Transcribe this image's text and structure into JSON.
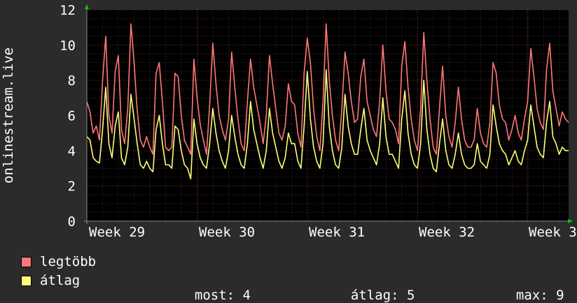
{
  "chart_data": {
    "type": "line",
    "ylabel": "onlinestream.live",
    "ylim": [
      0,
      12
    ],
    "yticks": [
      0,
      2,
      4,
      6,
      8,
      10,
      12
    ],
    "xlabels": [
      "Week 29",
      "Week 30",
      "Week 31",
      "Week 32",
      "Week 3"
    ],
    "grid": true,
    "background": "#000000",
    "grid_color": "#5a1a1a",
    "series": [
      {
        "name": "legtöbb",
        "color": "#ff7777",
        "values": [
          6.8,
          6.2,
          5.0,
          5.4,
          4.6,
          8.0,
          10.5,
          6.0,
          5.0,
          8.5,
          9.4,
          5.2,
          4.4,
          6.4,
          11.2,
          9.0,
          6.3,
          4.6,
          4.2,
          4.8,
          4.2,
          3.8,
          8.4,
          9.0,
          6.8,
          4.2,
          4.0,
          4.2,
          8.4,
          8.2,
          6.0,
          4.6,
          4.2,
          3.8,
          9.2,
          7.0,
          5.5,
          4.6,
          3.8,
          6.6,
          10.1,
          7.8,
          6.0,
          5.2,
          4.6,
          5.8,
          9.6,
          7.6,
          5.8,
          4.4,
          4.0,
          6.8,
          9.2,
          7.6,
          6.6,
          5.6,
          4.4,
          6.0,
          9.4,
          7.8,
          6.4,
          5.0,
          4.6,
          5.4,
          7.8,
          6.8,
          6.6,
          5.0,
          4.2,
          8.4,
          10.4,
          9.0,
          6.4,
          4.8,
          4.0,
          6.8,
          11.2,
          8.0,
          6.0,
          4.6,
          4.0,
          6.4,
          9.6,
          8.4,
          6.8,
          5.6,
          5.8,
          8.2,
          9.2,
          6.8,
          6.0,
          5.2,
          4.8,
          6.8,
          10.0,
          7.4,
          5.8,
          5.6,
          5.2,
          4.4,
          8.8,
          10.2,
          7.6,
          5.8,
          4.6,
          4.0,
          6.4,
          10.7,
          8.0,
          5.8,
          4.2,
          3.8,
          6.4,
          8.8,
          6.0,
          4.8,
          4.2,
          5.6,
          7.6,
          5.8,
          4.6,
          4.2,
          4.2,
          4.6,
          6.4,
          5.0,
          4.4,
          4.2,
          5.6,
          9.0,
          8.4,
          6.6,
          5.8,
          5.6,
          4.6,
          5.2,
          6.0,
          5.0,
          4.6,
          5.8,
          6.8,
          9.8,
          8.2,
          6.4,
          5.6,
          5.2,
          8.6,
          10.1,
          7.4,
          6.4,
          5.4,
          6.2,
          5.8,
          5.6
        ]
      },
      {
        "name": "átlag",
        "color": "#ffff77",
        "values": [
          4.8,
          4.6,
          3.6,
          3.4,
          3.3,
          5.2,
          7.6,
          4.4,
          3.6,
          5.4,
          6.2,
          3.6,
          3.2,
          4.2,
          7.2,
          5.8,
          4.4,
          3.2,
          3.0,
          3.4,
          3.0,
          2.8,
          5.2,
          6.0,
          4.4,
          3.2,
          3.2,
          3.0,
          5.4,
          5.2,
          4.0,
          3.2,
          3.0,
          2.4,
          5.8,
          4.4,
          3.6,
          3.2,
          3.0,
          4.4,
          6.4,
          5.0,
          4.0,
          3.4,
          3.0,
          4.0,
          6.0,
          4.8,
          3.8,
          3.2,
          3.0,
          4.4,
          6.8,
          5.2,
          4.4,
          3.6,
          3.0,
          4.0,
          6.4,
          5.0,
          4.2,
          3.4,
          3.0,
          3.6,
          5.0,
          4.4,
          4.4,
          3.4,
          3.0,
          5.4,
          8.5,
          5.8,
          4.2,
          3.4,
          3.0,
          4.4,
          8.6,
          5.4,
          4.0,
          3.2,
          3.0,
          4.2,
          7.2,
          5.4,
          4.4,
          3.8,
          3.8,
          5.2,
          6.4,
          4.6,
          4.0,
          3.6,
          3.2,
          4.4,
          7.0,
          4.8,
          3.8,
          3.8,
          3.4,
          3.0,
          5.8,
          7.4,
          5.0,
          3.8,
          3.2,
          3.0,
          4.4,
          8.0,
          5.2,
          3.8,
          3.0,
          2.8,
          4.4,
          5.8,
          4.0,
          3.2,
          3.0,
          3.8,
          5.0,
          3.8,
          3.2,
          3.0,
          3.0,
          3.2,
          4.4,
          3.4,
          3.2,
          3.0,
          3.8,
          6.6,
          5.4,
          4.4,
          4.0,
          3.8,
          3.2,
          3.6,
          4.0,
          3.4,
          3.2,
          4.0,
          4.6,
          6.6,
          5.4,
          4.2,
          3.8,
          3.6,
          5.6,
          6.8,
          4.8,
          4.4,
          3.8,
          4.2,
          4.0,
          4.0
        ]
      }
    ]
  },
  "legend": {
    "max_label": "legtöbb",
    "avg_label": "átlag",
    "max_color": "#ff7777",
    "avg_color": "#ffff77"
  },
  "stats": {
    "current": "most: 4",
    "average": "átlag: 5",
    "maximum": "max: 9"
  }
}
